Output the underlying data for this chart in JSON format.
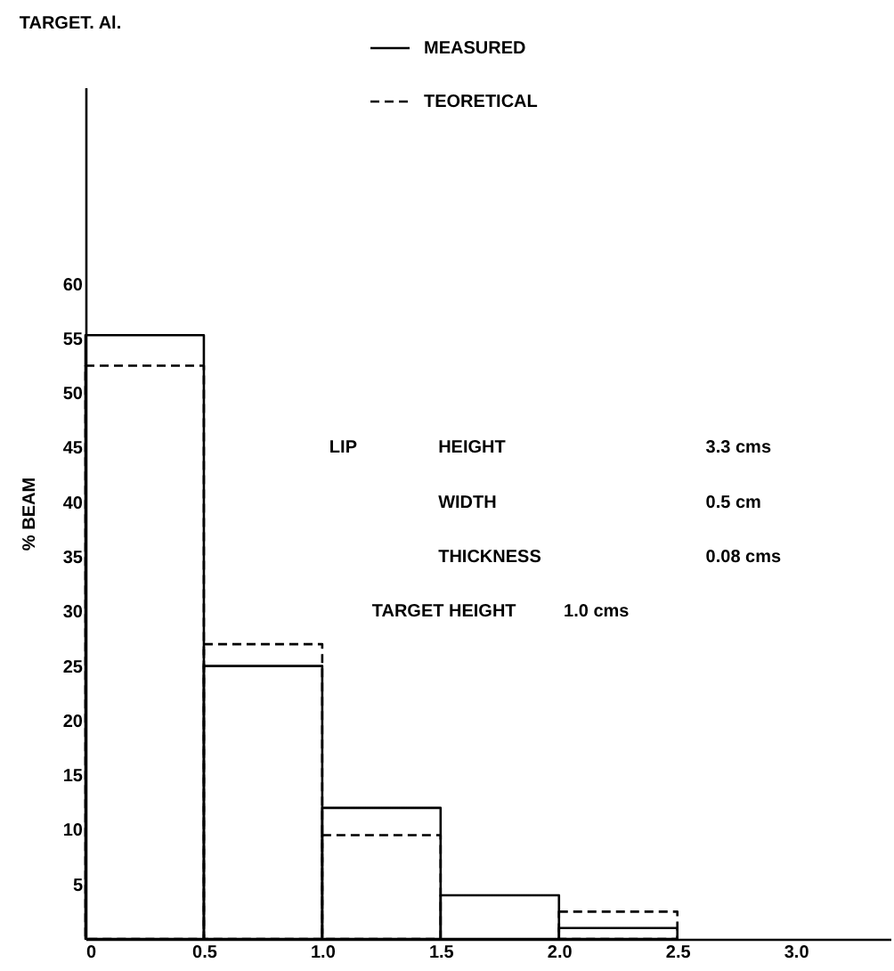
{
  "chart_data": {
    "type": "histogram",
    "title": "TARGET. Al.",
    "ylabel": "% BEAM",
    "bins": [
      0,
      0.5,
      1.0,
      1.5,
      2.0,
      2.5
    ],
    "series": [
      {
        "name": "MEASURED",
        "color": "#000000",
        "line_style": "solid",
        "values": [
          55.3,
          25,
          12,
          4,
          1
        ]
      },
      {
        "name": "TEORETICAL",
        "color": "#000000",
        "line_style": "dashed",
        "values": [
          52.5,
          27,
          9.5,
          null,
          2.5
        ]
      }
    ],
    "xlim": [
      0,
      3.4
    ],
    "xticks": [
      0,
      {
        "value": 0.5,
        "label": "0.5"
      },
      {
        "value": 1.0,
        "label": "1.0"
      },
      {
        "value": 1.5,
        "label": "1.5"
      },
      {
        "value": 2.0,
        "label": "2.0"
      },
      {
        "value": 2.5,
        "label": "2.5"
      },
      {
        "value": 3.0,
        "label": "3.0"
      }
    ],
    "ylim": [
      0,
      78
    ],
    "yticks": [
      5,
      10,
      15,
      20,
      25,
      30,
      35,
      40,
      45,
      50,
      55,
      60
    ],
    "grid": false,
    "legend": "top",
    "marker": "none",
    "annotations": [
      "LIP",
      "HEIGHT",
      "3.3  cms",
      "WIDTH",
      "0.5  cm",
      "THICKNESS",
      "0.08  cms",
      "TARGET  HEIGHT",
      "1.0  cms"
    ]
  }
}
